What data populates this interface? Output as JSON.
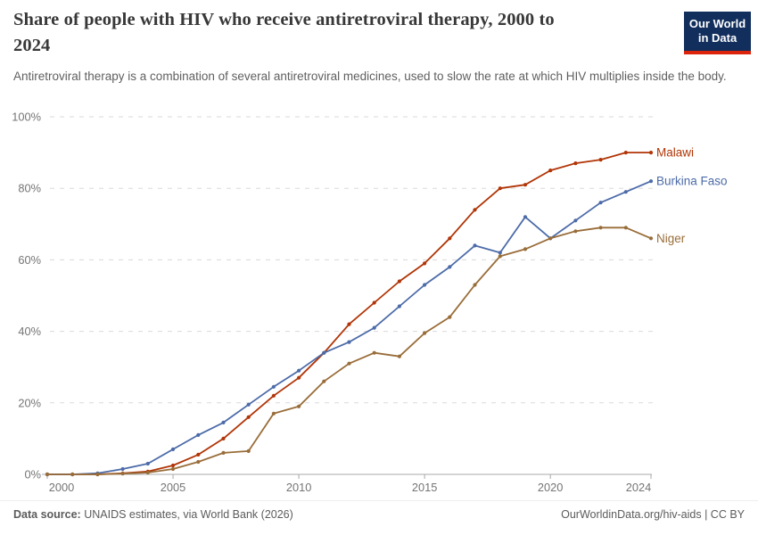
{
  "header": {
    "title": "Share of people with HIV who receive antiretroviral therapy, 2000 to 2024",
    "title_line1": "Share of people with HIV who receive antiretroviral therapy, 2000 to",
    "title_line2": "2024",
    "subtitle": "Antiretroviral therapy is a combination of several antiretroviral medicines, used to slow the rate at which HIV multiplies inside the body.",
    "logo": {
      "line1": "Our World",
      "line2": "in Data",
      "bg_color": "#112E5C",
      "accent_color": "#DC240C"
    }
  },
  "chart_data": {
    "type": "line",
    "title": "Share of people with HIV who receive antiretroviral therapy, 2000 to 2024",
    "xlabel": "",
    "ylabel": "",
    "x": [
      2000,
      2001,
      2002,
      2003,
      2004,
      2005,
      2006,
      2007,
      2008,
      2009,
      2010,
      2011,
      2012,
      2013,
      2014,
      2015,
      2016,
      2017,
      2018,
      2019,
      2020,
      2021,
      2022,
      2023,
      2024
    ],
    "series": [
      {
        "name": "Malawi",
        "color": "#B13507",
        "values": [
          0,
          0,
          0,
          0.3,
          0.8,
          2.5,
          5.5,
          10,
          16,
          22,
          27,
          34,
          42,
          48,
          54,
          59,
          66,
          74,
          80,
          81,
          85,
          87,
          88,
          90,
          90
        ]
      },
      {
        "name": "Burkina Faso",
        "color": "#4C6BA8",
        "values": [
          0,
          0,
          0.3,
          1.5,
          3,
          7,
          11,
          14.5,
          19.5,
          24.5,
          29,
          34,
          37,
          41,
          47,
          53,
          58,
          64,
          62,
          72,
          66,
          71,
          76,
          79,
          82
        ]
      },
      {
        "name": "Niger",
        "color": "#996D39",
        "values": [
          0,
          0,
          0,
          0.2,
          0.5,
          1.5,
          3.5,
          6,
          6.5,
          17,
          19,
          26,
          31,
          34,
          33,
          39.5,
          44,
          53,
          61,
          63,
          66,
          68,
          69,
          69,
          66
        ]
      }
    ],
    "x_ticks": [
      2000,
      2005,
      2010,
      2015,
      2020,
      2024
    ],
    "y_ticks": [
      0,
      20,
      40,
      60,
      80,
      100
    ],
    "y_tick_suffix": "%",
    "ylim": [
      0,
      100
    ],
    "xlim": [
      2000,
      2024
    ],
    "grid": "horizontal-dashed",
    "legend": "end-of-line-labels"
  },
  "footer": {
    "source_label": "Data source:",
    "source_text": " UNAIDS estimates, via World Bank (2026)",
    "link_text": "OurWorldinData.org/hiv-aids | CC BY"
  }
}
